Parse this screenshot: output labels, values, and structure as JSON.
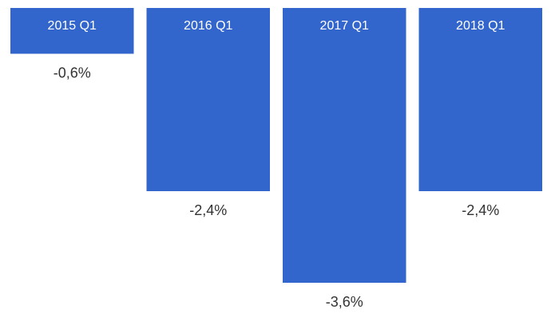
{
  "chart_data": {
    "type": "bar",
    "categories": [
      "2015 Q1",
      "2016 Q1",
      "2017 Q1",
      "2018 Q1"
    ],
    "values": [
      -0.6,
      -2.4,
      -3.6,
      -2.4
    ],
    "value_labels": [
      "-0,6%",
      "-2,4%",
      "-3,6%",
      "-2,4%"
    ],
    "title": "",
    "xlabel": "",
    "ylabel": "",
    "ylim": [
      -3.6,
      0
    ],
    "grid": false,
    "legend": "none",
    "colors": {
      "bar": "#3366cc",
      "category_text": "#ffffff",
      "value_text": "#333333"
    }
  }
}
